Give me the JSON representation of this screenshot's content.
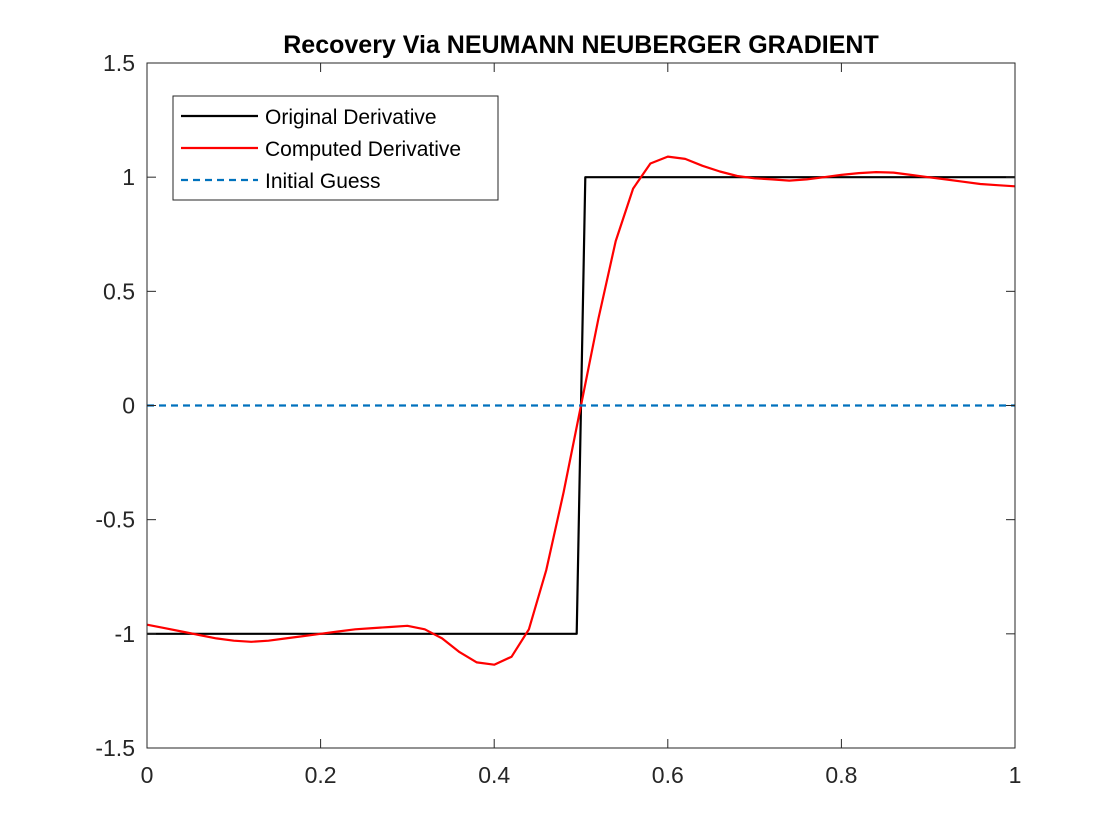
{
  "chart_data": {
    "type": "line",
    "title": "Recovery Via NEUMANN NEUBERGER GRADIENT",
    "xlabel": "",
    "ylabel": "",
    "xlim": [
      0,
      1
    ],
    "ylim": [
      -1.5,
      1.5
    ],
    "x_ticks": [
      0,
      0.2,
      0.4,
      0.6,
      0.8,
      1
    ],
    "x_tick_labels": [
      "0",
      "0.2",
      "0.4",
      "0.6",
      "0.8",
      "1"
    ],
    "y_ticks": [
      -1.5,
      -1,
      -0.5,
      0,
      0.5,
      1,
      1.5
    ],
    "y_tick_labels": [
      "-1.5",
      "-1",
      "-0.5",
      "0",
      "0.5",
      "1",
      "1.5"
    ],
    "grid": false,
    "legend_position": "top-left",
    "series": [
      {
        "name": "Original Derivative",
        "color": "#000000",
        "style": "solid",
        "x": [
          0,
          0.495,
          0.505,
          1
        ],
        "y": [
          -1,
          -1,
          1,
          1
        ]
      },
      {
        "name": "Computed Derivative",
        "color": "#ff0000",
        "style": "solid",
        "x": [
          0,
          0.02,
          0.04,
          0.06,
          0.08,
          0.1,
          0.12,
          0.14,
          0.16,
          0.18,
          0.2,
          0.22,
          0.24,
          0.26,
          0.28,
          0.3,
          0.32,
          0.34,
          0.36,
          0.38,
          0.4,
          0.42,
          0.44,
          0.46,
          0.48,
          0.5,
          0.52,
          0.54,
          0.56,
          0.58,
          0.6,
          0.62,
          0.64,
          0.66,
          0.68,
          0.7,
          0.72,
          0.74,
          0.76,
          0.78,
          0.8,
          0.82,
          0.84,
          0.86,
          0.88,
          0.9,
          0.92,
          0.94,
          0.96,
          0.98,
          1
        ],
        "y": [
          -0.96,
          -0.975,
          -0.99,
          -1.005,
          -1.02,
          -1.03,
          -1.035,
          -1.03,
          -1.02,
          -1.01,
          -1.0,
          -0.99,
          -0.98,
          -0.975,
          -0.97,
          -0.965,
          -0.98,
          -1.02,
          -1.08,
          -1.125,
          -1.135,
          -1.1,
          -0.98,
          -0.72,
          -0.38,
          0.0,
          0.38,
          0.72,
          0.95,
          1.06,
          1.09,
          1.08,
          1.05,
          1.025,
          1.005,
          0.995,
          0.99,
          0.985,
          0.99,
          1.0,
          1.01,
          1.018,
          1.022,
          1.02,
          1.01,
          1.0,
          0.99,
          0.98,
          0.97,
          0.965,
          0.96
        ]
      },
      {
        "name": "Initial Guess",
        "color": "#0072bd",
        "style": "dashed",
        "x": [
          0,
          1
        ],
        "y": [
          0,
          0
        ]
      }
    ]
  }
}
